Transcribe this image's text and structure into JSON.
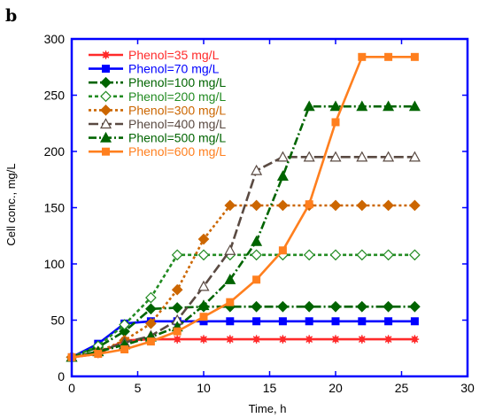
{
  "panel_label": "b",
  "chart_data": {
    "type": "line",
    "title": "",
    "xlabel": "Time, h",
    "ylabel": "Cell conc., mg/L",
    "xlim": [
      0,
      30
    ],
    "ylim": [
      0,
      300
    ],
    "xticks": [
      0,
      5,
      10,
      15,
      20,
      25,
      30
    ],
    "yticks": [
      0,
      50,
      100,
      150,
      200,
      250,
      300
    ],
    "grid": false,
    "legend_position": "top-left",
    "frame_color": "#0000ff",
    "series": [
      {
        "name": "Phenol=35 mg/L",
        "color": "#ff2a2a",
        "dash": "",
        "marker": "star",
        "x": [
          0,
          2,
          4,
          6,
          8,
          10,
          12,
          14,
          16,
          18,
          20,
          22,
          24,
          26
        ],
        "y": [
          17,
          20,
          32,
          33,
          33,
          33,
          33,
          33,
          33,
          33,
          33,
          33,
          33,
          33
        ]
      },
      {
        "name": "Phenol=70 mg/L",
        "color": "#0000ff",
        "dash": "",
        "marker": "square",
        "x": [
          0,
          2,
          4,
          6,
          8,
          10,
          12,
          14,
          16,
          18,
          20,
          22,
          24,
          26
        ],
        "y": [
          17,
          29,
          47,
          49,
          49,
          49,
          49,
          49,
          49,
          49,
          49,
          49,
          49,
          49
        ]
      },
      {
        "name": "Phenol=100 mg/L",
        "color": "#006400",
        "dash": "10,3,2,3",
        "marker": "diamond",
        "x": [
          0,
          2,
          4,
          6,
          8,
          10,
          12,
          14,
          16,
          18,
          20,
          22,
          24,
          26
        ],
        "y": [
          17,
          26,
          40,
          60,
          61,
          62,
          62,
          62,
          62,
          62,
          62,
          62,
          62,
          62
        ]
      },
      {
        "name": "Phenol=200 mg/L",
        "color": "#228b22",
        "dash": "4,3",
        "marker": "diamond-open",
        "x": [
          0,
          2,
          4,
          6,
          8,
          10,
          12,
          14,
          16,
          18,
          20,
          22,
          24,
          26
        ],
        "y": [
          17,
          27,
          46,
          70,
          108,
          108,
          108,
          108,
          108,
          108,
          108,
          108,
          108,
          108
        ]
      },
      {
        "name": "Phenol=300 mg/L",
        "color": "#cc6600",
        "dash": "3,3",
        "marker": "diamond",
        "x": [
          0,
          2,
          4,
          6,
          8,
          10,
          12,
          14,
          16,
          18,
          20,
          22,
          24,
          26
        ],
        "y": [
          17,
          22,
          32,
          47,
          77,
          122,
          152,
          152,
          152,
          152,
          152,
          152,
          152,
          152
        ]
      },
      {
        "name": "Phenol=400 mg/L",
        "color": "#5a4a42",
        "dash": "11,4",
        "marker": "triangle-open",
        "x": [
          0,
          2,
          4,
          6,
          8,
          10,
          12,
          14,
          16,
          18,
          20,
          22,
          24,
          26
        ],
        "y": [
          17,
          22,
          30,
          36,
          50,
          80,
          112,
          183,
          195,
          195,
          195,
          195,
          195,
          195
        ]
      },
      {
        "name": "Phenol=500 mg/L",
        "color": "#006400",
        "dash": "9,3,2,3",
        "marker": "triangle",
        "x": [
          0,
          2,
          4,
          6,
          8,
          10,
          12,
          14,
          16,
          18,
          20,
          22,
          24,
          26
        ],
        "y": [
          17,
          22,
          28,
          35,
          44,
          63,
          86,
          120,
          178,
          240,
          240,
          240,
          240,
          240
        ]
      },
      {
        "name": "Phenol=600 mg/L",
        "color": "#ff7f1e",
        "dash": "",
        "marker": "square",
        "x": [
          0,
          2,
          4,
          6,
          8,
          10,
          12,
          14,
          16,
          18,
          20,
          22,
          24,
          26
        ],
        "y": [
          17,
          20,
          24,
          31,
          40,
          53,
          66,
          86,
          112,
          153,
          226,
          284,
          284,
          284
        ]
      }
    ]
  }
}
